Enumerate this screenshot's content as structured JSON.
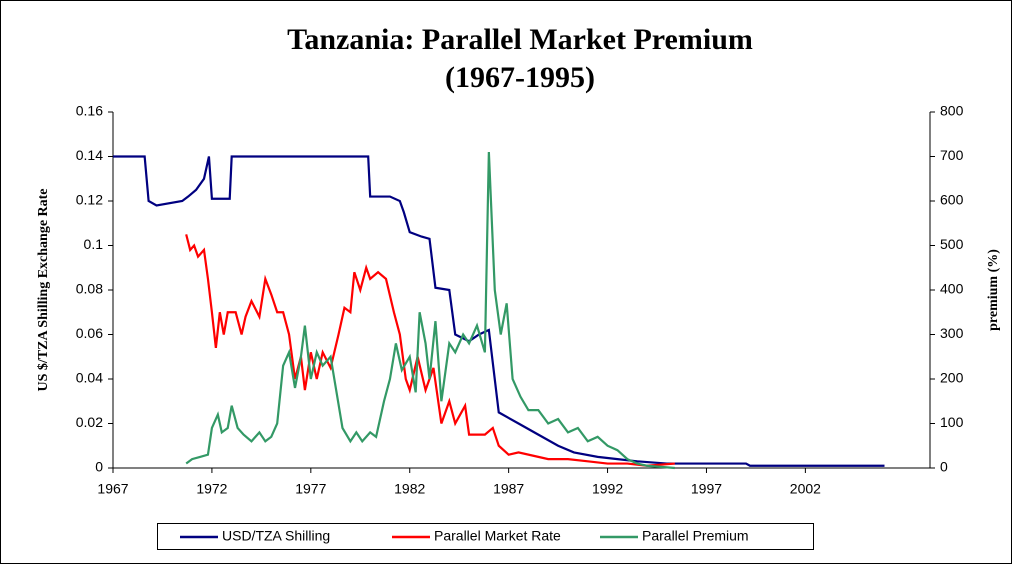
{
  "chart_data": {
    "type": "line",
    "title": "Tanzania: Parallel Market Premium",
    "subtitle": "(1967-1995)",
    "ylabel": "US $/TZA Shilling Exchange Rate",
    "y2label": "premium (%)",
    "xlim": [
      1967,
      2008.3
    ],
    "xticks": [
      1967,
      1972,
      1977,
      1982,
      1987,
      1992,
      1997,
      2002
    ],
    "ylim": [
      0,
      0.16
    ],
    "yticks": [
      0,
      0.02,
      0.04,
      0.06,
      0.08,
      0.1,
      0.12,
      0.14,
      0.16
    ],
    "y2lim": [
      0,
      800
    ],
    "y2ticks": [
      0,
      100,
      200,
      300,
      400,
      500,
      600,
      700,
      800
    ],
    "grid": false,
    "legend": "bottom",
    "series": [
      {
        "name": "USD/TZA Shilling",
        "color": "#000080",
        "x": [
          1967,
          1968.6,
          1968.8,
          1969.2,
          1970.5,
          1970.8,
          1971.2,
          1971.6,
          1971.85,
          1972.0,
          1972.9,
          1973.0,
          1979.9,
          1980.0,
          1981.0,
          1981.5,
          1981.7,
          1982.0,
          1982.6,
          1983.0,
          1983.3,
          1984.0,
          1984.3,
          1985.0,
          1985.5,
          1986.0,
          1986.5,
          1987.5,
          1988.5,
          1989.5,
          1990.3,
          1991.5,
          1992.5,
          1993.5,
          1995,
          1999,
          1999.2,
          2006
        ],
        "values": [
          0.14,
          0.14,
          0.12,
          0.118,
          0.12,
          0.122,
          0.125,
          0.13,
          0.14,
          0.121,
          0.121,
          0.14,
          0.14,
          0.122,
          0.122,
          0.12,
          0.115,
          0.106,
          0.104,
          0.103,
          0.081,
          0.08,
          0.06,
          0.057,
          0.06,
          0.062,
          0.025,
          0.02,
          0.015,
          0.01,
          0.007,
          0.005,
          0.004,
          0.003,
          0.002,
          0.002,
          0.001,
          0.001
        ]
      },
      {
        "name": "Parallel Market Rate",
        "color": "#ff0000",
        "x": [
          1970.7,
          1970.9,
          1971.1,
          1971.3,
          1971.6,
          1971.8,
          1972.0,
          1972.2,
          1972.4,
          1972.6,
          1972.8,
          1973.2,
          1973.5,
          1973.7,
          1974.0,
          1974.4,
          1974.7,
          1975.0,
          1975.3,
          1975.6,
          1975.9,
          1976.2,
          1976.5,
          1976.7,
          1977.0,
          1977.3,
          1977.6,
          1978.0,
          1978.4,
          1978.7,
          1979.0,
          1979.2,
          1979.5,
          1979.8,
          1980.0,
          1980.4,
          1980.8,
          1981.2,
          1981.5,
          1981.8,
          1982.0,
          1982.4,
          1982.8,
          1983.2,
          1983.6,
          1984.0,
          1984.3,
          1984.8,
          1985.0,
          1985.8,
          1986.2,
          1986.5,
          1987.0,
          1987.5,
          1988.5,
          1989.0,
          1990,
          1991,
          1992,
          1993,
          1994,
          1995.4
        ],
        "values": [
          0.105,
          0.098,
          0.1,
          0.095,
          0.098,
          0.085,
          0.07,
          0.054,
          0.07,
          0.06,
          0.07,
          0.07,
          0.06,
          0.068,
          0.075,
          0.068,
          0.085,
          0.078,
          0.07,
          0.07,
          0.06,
          0.04,
          0.05,
          0.035,
          0.052,
          0.04,
          0.052,
          0.045,
          0.06,
          0.072,
          0.07,
          0.088,
          0.08,
          0.09,
          0.085,
          0.088,
          0.085,
          0.07,
          0.06,
          0.04,
          0.035,
          0.05,
          0.035,
          0.045,
          0.02,
          0.03,
          0.02,
          0.028,
          0.015,
          0.015,
          0.018,
          0.01,
          0.006,
          0.007,
          0.005,
          0.004,
          0.004,
          0.003,
          0.002,
          0.002,
          0.001,
          0.002
        ]
      },
      {
        "name": "Parallel Premium",
        "color": "#339966",
        "axis": "y2",
        "x": [
          1970.7,
          1971.0,
          1971.4,
          1971.8,
          1972.0,
          1972.3,
          1972.5,
          1972.8,
          1973.0,
          1973.3,
          1973.6,
          1974.0,
          1974.4,
          1974.7,
          1975.0,
          1975.3,
          1975.6,
          1975.9,
          1976.2,
          1976.5,
          1976.7,
          1977.0,
          1977.3,
          1977.6,
          1978.0,
          1978.3,
          1978.6,
          1979.0,
          1979.3,
          1979.6,
          1980.0,
          1980.3,
          1980.7,
          1981.0,
          1981.3,
          1981.6,
          1982.0,
          1982.3,
          1982.5,
          1982.8,
          1983.0,
          1983.3,
          1983.6,
          1984.0,
          1984.3,
          1984.7,
          1985.0,
          1985.4,
          1985.8,
          1986.0,
          1986.3,
          1986.6,
          1986.9,
          1987.2,
          1987.6,
          1988.0,
          1988.5,
          1989.0,
          1989.5,
          1990.0,
          1990.5,
          1991.0,
          1991.5,
          1992.0,
          1992.5,
          1993.0,
          1993.5,
          1994.0,
          1995.4
        ],
        "values": [
          10,
          20,
          25,
          30,
          90,
          120,
          80,
          90,
          140,
          90,
          75,
          60,
          80,
          60,
          70,
          100,
          230,
          260,
          180,
          250,
          320,
          200,
          260,
          230,
          250,
          170,
          90,
          60,
          80,
          60,
          80,
          70,
          150,
          200,
          280,
          220,
          250,
          170,
          350,
          280,
          200,
          330,
          150,
          280,
          260,
          300,
          280,
          320,
          260,
          710,
          400,
          300,
          370,
          200,
          160,
          130,
          130,
          100,
          110,
          80,
          90,
          60,
          70,
          50,
          40,
          20,
          10,
          5,
          0
        ]
      }
    ]
  }
}
